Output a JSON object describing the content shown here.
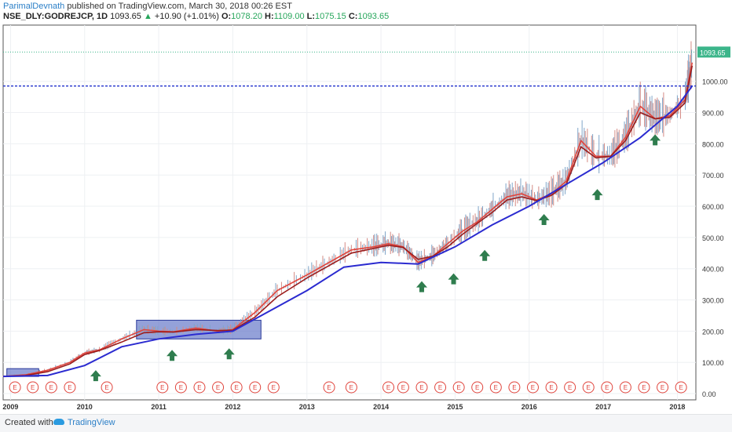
{
  "header": {
    "author": "ParimalDevnath",
    "published": "published on TradingView.com, March 30, 2018 00:26 EST",
    "symbol": "NSE_DLY:GODREJCP, 1D",
    "last": "1093.65",
    "change_arrow": "▲",
    "change": "+10.90 (+1.01%)",
    "o_label": "O:",
    "o_value": "1078.20",
    "h_label": "H:",
    "h_value": "1109.00",
    "l_label": "L:",
    "l_value": "1075.15",
    "c_label": "C:",
    "c_value": "1093.65"
  },
  "footer": {
    "created_with": "Created with",
    "brand": "TradingView"
  },
  "chart_data": {
    "type": "line",
    "y_ticks": [
      "0.00",
      "100.00",
      "200.00",
      "300.00",
      "400.00",
      "500.00",
      "600.00",
      "700.00",
      "800.00",
      "900.00",
      "1000.00"
    ],
    "x_ticks": [
      "2009",
      "2010",
      "2011",
      "2012",
      "2013",
      "2014",
      "2015",
      "2016",
      "2017",
      "2018"
    ],
    "ylim": [
      -20,
      1180
    ],
    "xlim": [
      2008.9,
      2018.25
    ],
    "last_price_label": "1093.65",
    "last_price": 1093.65,
    "horizontal_level": 985,
    "earnings_marker_label": "E",
    "earnings_x": [
      2009.06,
      2009.3,
      2009.55,
      2009.8,
      2010.3,
      2011.05,
      2011.3,
      2011.55,
      2011.8,
      2012.05,
      2012.3,
      2012.55,
      2013.3,
      2013.6,
      2014.1,
      2014.3,
      2014.55,
      2014.8,
      2015.05,
      2015.3,
      2015.55,
      2015.8,
      2016.05,
      2016.3,
      2016.55,
      2016.8,
      2017.05,
      2017.3,
      2017.55,
      2017.8,
      2018.05
    ],
    "arrows_x": [
      2010.15,
      2011.18,
      2011.95,
      2014.55,
      2014.98,
      2015.4,
      2016.2,
      2016.92,
      2017.7
    ],
    "arrows_y": [
      75,
      140,
      145,
      360,
      385,
      460,
      575,
      655,
      830
    ],
    "boxes": [
      {
        "x0": 2008.95,
        "x1": 2009.38,
        "y0": 55,
        "y1": 80
      },
      {
        "x0": 2010.7,
        "x1": 2012.38,
        "y0": 175,
        "y1": 235
      }
    ],
    "series": [
      {
        "values_x": [
          2008.9,
          2009.2,
          2009.5,
          2009.8,
          2010.0,
          2010.2,
          2010.5,
          2010.8,
          2011.0,
          2011.2,
          2011.5,
          2011.8,
          2012.0,
          2012.3,
          2012.6,
          2013.0,
          2013.3,
          2013.6,
          2013.9,
          2014.1,
          2014.3,
          2014.5,
          2014.7,
          2014.9,
          2015.1,
          2015.3,
          2015.5,
          2015.7,
          2015.9,
          2016.1,
          2016.3,
          2016.5,
          2016.7,
          2016.9,
          2017.1,
          2017.3,
          2017.5,
          2017.7,
          2017.9,
          2018.1,
          2018.2
        ],
        "values": [
          55,
          60,
          75,
          100,
          130,
          140,
          175,
          205,
          200,
          198,
          210,
          200,
          205,
          260,
          330,
          380,
          420,
          460,
          470,
          480,
          470,
          420,
          440,
          480,
          520,
          550,
          590,
          630,
          640,
          620,
          640,
          680,
          810,
          760,
          760,
          820,
          920,
          880,
          890,
          940,
          1060
        ],
        "color": "#e0443c"
      },
      {
        "values_x": [
          2008.9,
          2009.2,
          2009.5,
          2009.8,
          2010.0,
          2010.2,
          2010.5,
          2010.8,
          2011.0,
          2011.2,
          2011.5,
          2011.8,
          2012.0,
          2012.3,
          2012.6,
          2013.0,
          2013.3,
          2013.6,
          2013.9,
          2014.1,
          2014.3,
          2014.5,
          2014.7,
          2014.9,
          2015.1,
          2015.3,
          2015.5,
          2015.7,
          2015.9,
          2016.1,
          2016.3,
          2016.5,
          2016.7,
          2016.9,
          2017.1,
          2017.3,
          2017.5,
          2017.7,
          2017.9,
          2018.1,
          2018.2
        ],
        "values": [
          55,
          58,
          70,
          95,
          125,
          138,
          165,
          195,
          198,
          197,
          205,
          202,
          203,
          245,
          310,
          370,
          410,
          450,
          465,
          475,
          468,
          430,
          440,
          470,
          510,
          545,
          580,
          620,
          630,
          618,
          635,
          670,
          790,
          755,
          760,
          810,
          900,
          880,
          885,
          930,
          1050
        ],
        "color": "#9b1c1c"
      },
      {
        "values_x": [
          2008.9,
          2009.5,
          2010.0,
          2010.5,
          2011.0,
          2011.5,
          2012.0,
          2012.5,
          2013.0,
          2013.5,
          2014.0,
          2014.5,
          2015.0,
          2015.5,
          2016.0,
          2016.5,
          2017.0,
          2017.5,
          2018.0,
          2018.2
        ],
        "values": [
          55,
          58,
          90,
          150,
          175,
          190,
          200,
          265,
          330,
          405,
          420,
          415,
          470,
          540,
          600,
          670,
          740,
          820,
          920,
          985
        ],
        "color": "#2b2bd0"
      }
    ]
  }
}
